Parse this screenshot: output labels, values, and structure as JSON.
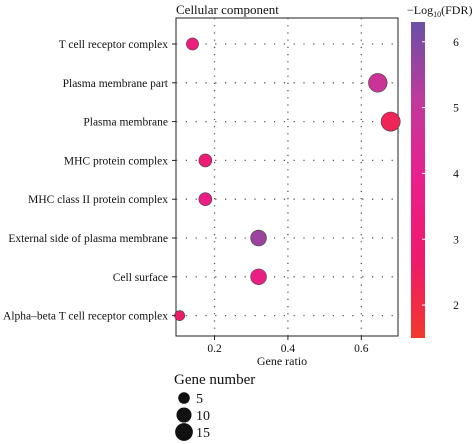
{
  "chart_data": {
    "type": "scatter",
    "title": "Cellular component",
    "xlabel": "Gene ratio",
    "ylabel": "",
    "xlim": [
      0.095,
      0.7
    ],
    "xticks": [
      0.2,
      0.4,
      0.6
    ],
    "xtick_labels": [
      "0.2",
      "0.4",
      "0.6"
    ],
    "grid": true,
    "categories": [
      "T cell receptor complex",
      "Plasma membrane part",
      "Plasma membrane",
      "MHC protein complex",
      "MHC class II protein complex",
      "External side of plasma membrane",
      "Cell surface",
      "Alpha–beta T cell receptor complex"
    ],
    "points": [
      {
        "category": "T cell receptor complex",
        "gene_ratio": 0.14,
        "gene_number": 5,
        "neg_log10_fdr": 3.4
      },
      {
        "category": "Plasma membrane part",
        "gene_ratio": 0.645,
        "gene_number": 15,
        "neg_log10_fdr": 4.8
      },
      {
        "category": "Plasma membrane",
        "gene_ratio": 0.68,
        "gene_number": 16,
        "neg_log10_fdr": 2.3
      },
      {
        "category": "MHC protein complex",
        "gene_ratio": 0.175,
        "gene_number": 6,
        "neg_log10_fdr": 3.0
      },
      {
        "category": "MHC class II protein complex",
        "gene_ratio": 0.175,
        "gene_number": 6,
        "neg_log10_fdr": 3.7
      },
      {
        "category": "External side of plasma membrane",
        "gene_ratio": 0.32,
        "gene_number": 10,
        "neg_log10_fdr": 5.6
      },
      {
        "category": "Cell surface",
        "gene_ratio": 0.32,
        "gene_number": 10,
        "neg_log10_fdr": 3.6
      },
      {
        "category": "Alpha–beta T cell receptor complex",
        "gene_ratio": 0.105,
        "gene_number": 3,
        "neg_log10_fdr": 2.6
      }
    ],
    "color_legend": {
      "title_prefix": "−Log",
      "title_sub": "10",
      "title_suffix": "(FDR)",
      "min": 1.5,
      "max": 6.3,
      "ticks": [
        2,
        3,
        4,
        5,
        6
      ],
      "colors": [
        "#f2382c",
        "#ee1a6c",
        "#ea1f8c",
        "#c03a9b",
        "#6a4fa6"
      ]
    },
    "size_legend": {
      "title": "Gene number",
      "values": [
        5,
        10,
        15
      ]
    }
  }
}
